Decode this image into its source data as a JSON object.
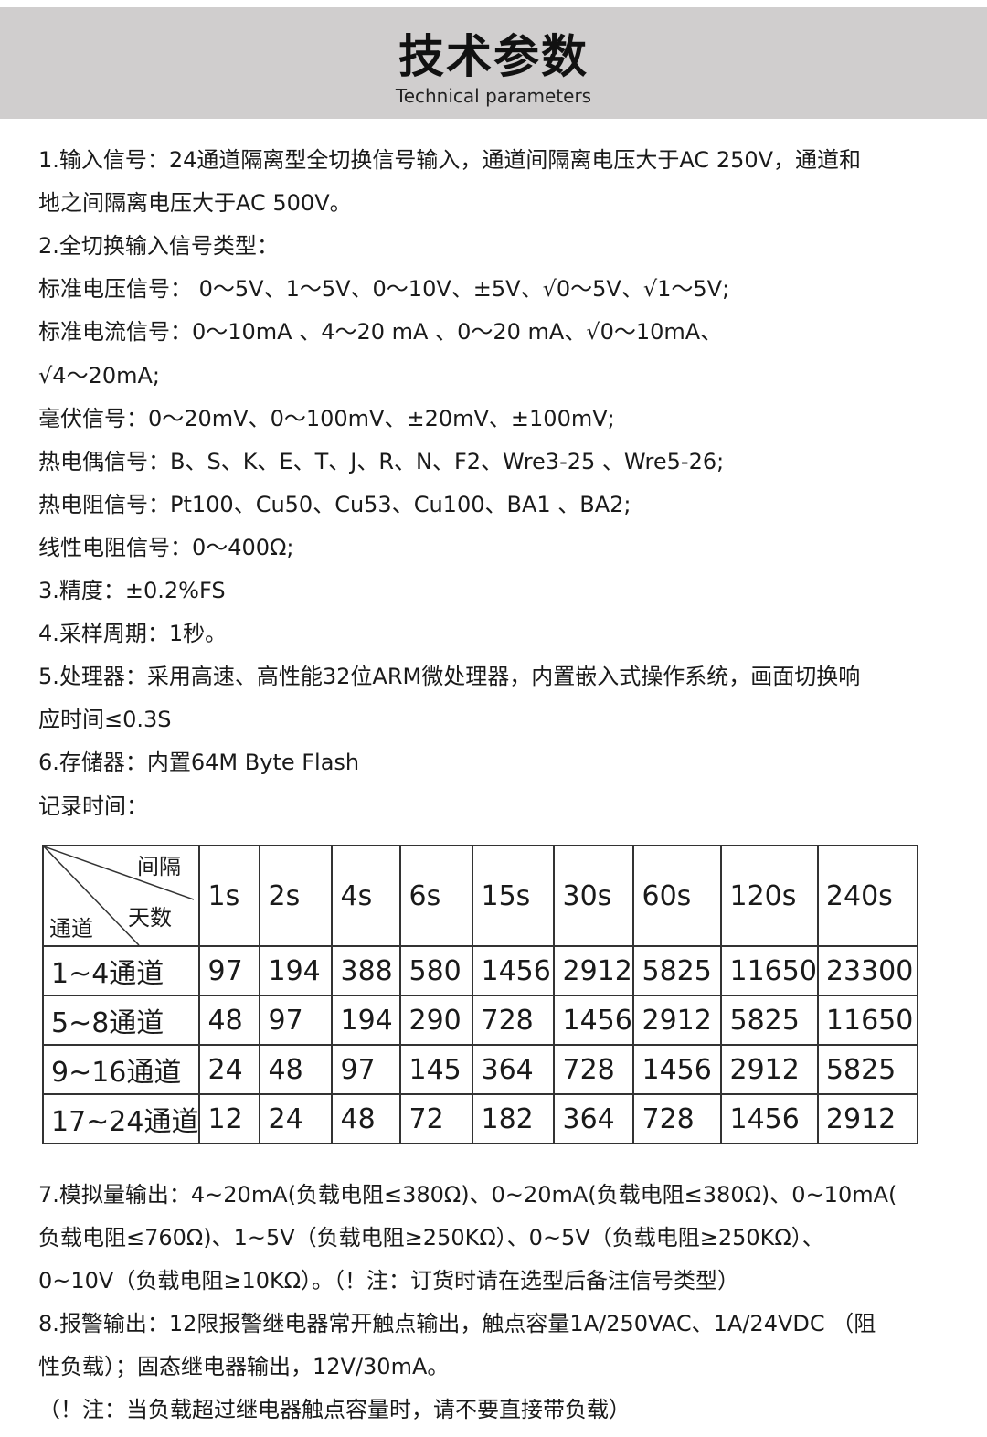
{
  "header": {
    "title": "技术参数",
    "subtitle": "Technical parameters"
  },
  "lines": [
    "1.输入信号：24通道隔离型全切换信号输入，通道间隔离电压大于AC 250V，通道和",
    "地之间隔离电压大于AC 500V。",
    "2.全切换输入信号类型：",
    "标准电压信号： 0～5V、1～5V、0～10V、±5V、√0～5V、√1～5V;",
    "标准电流信号：0～10mA 、4～20 mA 、0～20 mA、√0～10mA、",
    "√4～20mA;",
    "毫伏信号：0～20mV、0～100mV、±20mV、±100mV;",
    "热电偶信号：B、S、K、E、T、J、R、N、F2、Wre3-25 、Wre5-26;",
    "热电阻信号：Pt100、Cu50、Cu53、Cu100、BA1 、BA2;",
    "线性电阻信号：0～400Ω;",
    "3.精度：±0.2%FS",
    "4.采样周期：1秒。",
    "5.处理器：采用高速、高性能32位ARM微处理器，内置嵌入式操作系统，画面切换响",
    "应时间≤0.3S",
    "6.存储器：内置64M Byte Flash",
    "记录时间："
  ],
  "table": {
    "corner": {
      "top": "间隔",
      "middle": "天数",
      "bottom": "通道"
    },
    "columns": [
      "1s",
      "2s",
      "4s",
      "6s",
      "15s",
      "30s",
      "60s",
      "120s",
      "240s"
    ],
    "rows": [
      {
        "label": "1~4通道",
        "values": [
          "97",
          "194",
          "388",
          "580",
          "1456",
          "2912",
          "5825",
          "11650",
          "23300"
        ]
      },
      {
        "label": "5~8通道",
        "values": [
          "48",
          "97",
          "194",
          "290",
          "728",
          "1456",
          "2912",
          "5825",
          "11650"
        ]
      },
      {
        "label": "9~16通道",
        "values": [
          "24",
          "48",
          "97",
          "145",
          "364",
          "728",
          "1456",
          "2912",
          "5825"
        ]
      },
      {
        "label": "17~24通道",
        "values": [
          "12",
          "24",
          "48",
          "72",
          "182",
          "364",
          "728",
          "1456",
          "2912"
        ]
      }
    ]
  },
  "lines2": [
    "7.模拟量输出：4~20mA(负载电阻≤380Ω)、0~20mA(负载电阻≤380Ω)、0~10mA(",
    "负载电阻≤760Ω)、1~5V（负载电阻≥250KΩ）、0~5V（负载电阻≥250KΩ）、",
    "0~10V（负载电阻≥10KΩ）。（！注：订货时请在选型后备注信号类型）",
    "8.报警输出：12限报警继电器常开触点输出，触点容量1A/250VAC、1A/24VDC （阻",
    "性负载）；固态继电器输出，12V/30mA。",
    "（！注：当负载超过继电器触点容量时，请不要直接带负载）"
  ]
}
